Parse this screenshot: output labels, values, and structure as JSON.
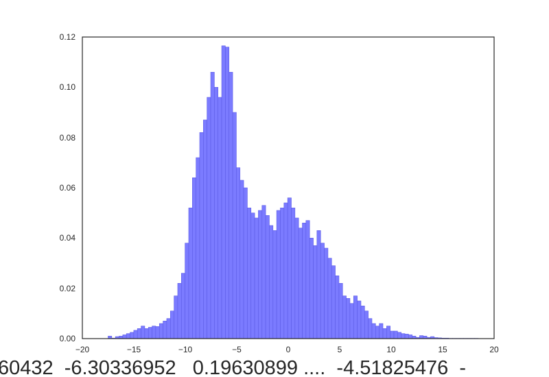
{
  "chart_data": {
    "type": "bar",
    "title": "",
    "xlabel": "60432  -6.30336952   0.19630899 ....  -4.51825476  -",
    "ylabel": "",
    "xlim": [
      -20,
      20
    ],
    "ylim": [
      0,
      0.12
    ],
    "x_ticks": [
      "−20",
      "−15",
      "−10",
      "−5",
      "0",
      "5",
      "10",
      "15",
      "20"
    ],
    "y_ticks": [
      "0.00",
      "0.02",
      "0.04",
      "0.06",
      "0.08",
      "0.10",
      "0.12"
    ],
    "grid": false,
    "bin_edges_start": -17.5,
    "bin_width": 0.356,
    "values": [
      0.001,
      0.0002,
      0.0008,
      0.001,
      0.0015,
      0.002,
      0.0025,
      0.0033,
      0.004,
      0.005,
      0.004,
      0.0045,
      0.005,
      0.0048,
      0.006,
      0.007,
      0.008,
      0.011,
      0.017,
      0.022,
      0.026,
      0.038,
      0.052,
      0.064,
      0.072,
      0.082,
      0.087,
      0.096,
      0.106,
      0.1,
      0.096,
      0.1165,
      0.116,
      0.106,
      0.09,
      0.068,
      0.063,
      0.06,
      0.052,
      0.05,
      0.048,
      0.051,
      0.053,
      0.049,
      0.045,
      0.043,
      0.051,
      0.052,
      0.054,
      0.056,
      0.052,
      0.048,
      0.044,
      0.046,
      0.047,
      0.04,
      0.037,
      0.043,
      0.038,
      0.036,
      0.032,
      0.029,
      0.025,
      0.022,
      0.017,
      0.016,
      0.014,
      0.017,
      0.015,
      0.013,
      0.011,
      0.008,
      0.006,
      0.005,
      0.006,
      0.004,
      0.005,
      0.003,
      0.003,
      0.0025,
      0.002,
      0.0018,
      0.0015,
      0.001,
      0.0005,
      0.0012,
      0.001,
      0.0005,
      0.0008,
      0.0004,
      0.0003,
      0.0002,
      0.0002,
      0.0001,
      0.0001,
      0.0001,
      0.0001,
      0.0001,
      0.0001,
      0.0001,
      0.0001
    ],
    "bar_color": "#7b7bff",
    "bar_edge_color": "#5c5ce6"
  }
}
